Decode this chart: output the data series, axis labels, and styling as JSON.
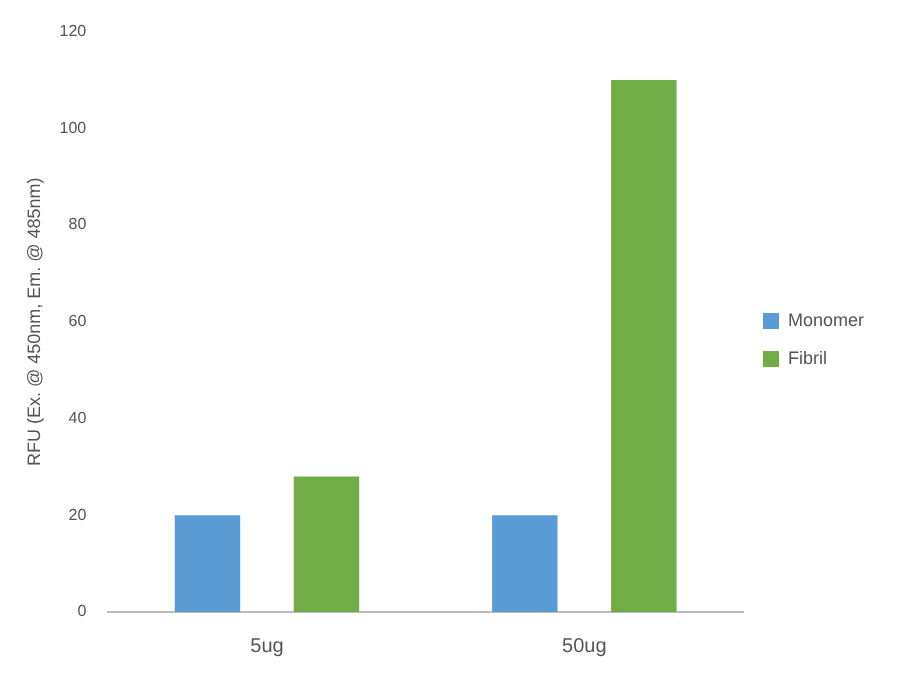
{
  "chart_data": {
    "type": "bar",
    "ylabel": "RFU (Ex. @ 450nm, Em. @ 485nm)",
    "categories": [
      "5ug",
      "50ug"
    ],
    "series": [
      {
        "name": "Monomer",
        "color": "#5b9bd5",
        "values": [
          20,
          20
        ]
      },
      {
        "name": "Fibril",
        "color": "#70ad47",
        "values": [
          28,
          110
        ]
      }
    ],
    "ylim": [
      0,
      120
    ],
    "yticks": [
      0,
      20,
      40,
      60,
      80,
      100,
      120
    ],
    "grid": false,
    "legend": "right"
  }
}
